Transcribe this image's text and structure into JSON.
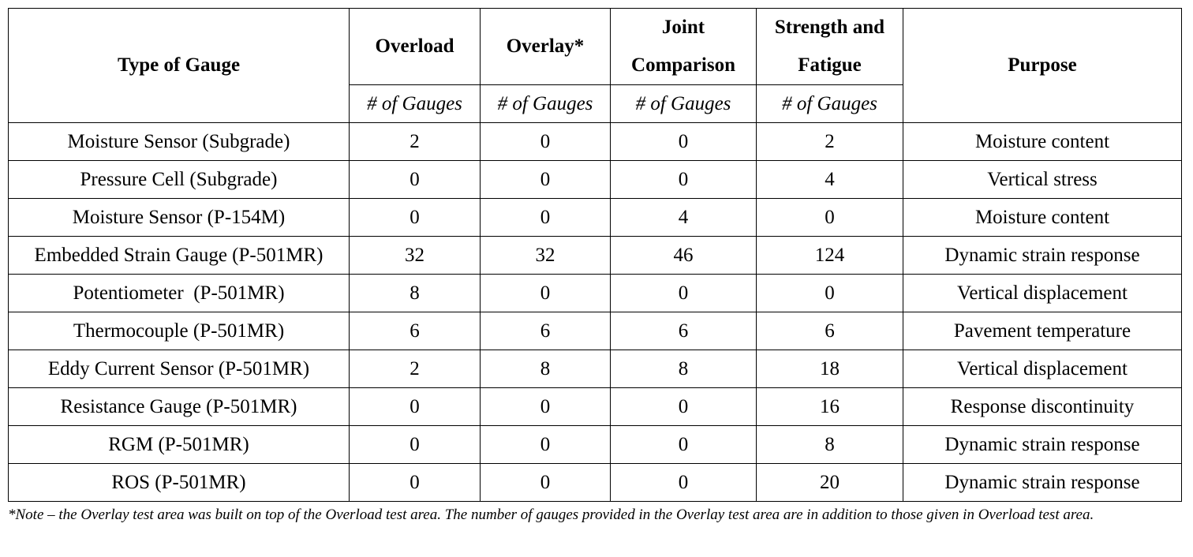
{
  "table": {
    "headers": {
      "type": "Type of Gauge",
      "overload": "Overload",
      "overlay": "Overlay*",
      "joint": "Joint Comparison",
      "strength": "Strength and Fatigue",
      "purpose": "Purpose"
    },
    "subheader": "# of Gauges",
    "rows": [
      {
        "type": "Moisture Sensor (Subgrade)",
        "overload": "2",
        "overlay": "0",
        "joint": "0",
        "strength": "2",
        "purpose": "Moisture content"
      },
      {
        "type": "Pressure Cell (Subgrade)",
        "overload": "0",
        "overlay": "0",
        "joint": "0",
        "strength": "4",
        "purpose": "Vertical stress"
      },
      {
        "type": "Moisture Sensor (P-154M)",
        "overload": "0",
        "overlay": "0",
        "joint": "4",
        "strength": "0",
        "purpose": "Moisture content"
      },
      {
        "type": "Embedded Strain Gauge (P-501MR)",
        "overload": "32",
        "overlay": "32",
        "joint": "46",
        "strength": "124",
        "purpose": "Dynamic strain response"
      },
      {
        "type": "Potentiometer  (P-501MR)",
        "overload": "8",
        "overlay": "0",
        "joint": "0",
        "strength": "0",
        "purpose": "Vertical displacement"
      },
      {
        "type": "Thermocouple (P-501MR)",
        "overload": "6",
        "overlay": "6",
        "joint": "6",
        "strength": "6",
        "purpose": "Pavement temperature"
      },
      {
        "type": "Eddy Current Sensor (P-501MR)",
        "overload": "2",
        "overlay": "8",
        "joint": "8",
        "strength": "18",
        "purpose": "Vertical displacement"
      },
      {
        "type": "Resistance Gauge (P-501MR)",
        "overload": "0",
        "overlay": "0",
        "joint": "0",
        "strength": "16",
        "purpose": "Response discontinuity"
      },
      {
        "type": "RGM (P-501MR)",
        "overload": "0",
        "overlay": "0",
        "joint": "0",
        "strength": "8",
        "purpose": "Dynamic strain response"
      },
      {
        "type": "ROS (P-501MR)",
        "overload": "0",
        "overlay": "0",
        "joint": "0",
        "strength": "20",
        "purpose": "Dynamic strain response"
      }
    ]
  },
  "note": "*Note – the Overlay test area was built on top of the Overload test area. The number of gauges provided in the Overlay test area are in addition to those given in Overload test area."
}
